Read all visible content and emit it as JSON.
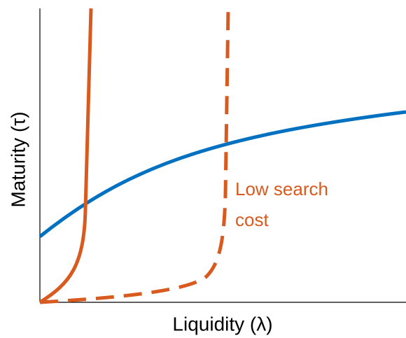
{
  "chart_data": {
    "type": "line",
    "x_label": "Liquidity (λ)",
    "y_label": "Maturity (τ)",
    "annotation": [
      "Low search",
      "cost"
    ]
  }
}
